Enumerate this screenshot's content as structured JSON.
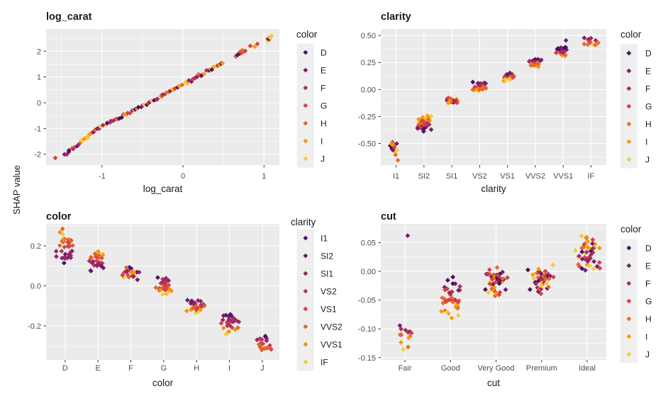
{
  "figure": {
    "shared_y_label": "SHAP value",
    "background": "#FFFFFF",
    "panel_bg": "#EBEBEB",
    "grid_color": "#FFFFFF",
    "legend_key_bg": "#EFEFEF",
    "tick_text_color": "#4D4D4D",
    "text_color": "#1A1A1A",
    "tick_mark_color": "#333333"
  },
  "chart_data": [
    {
      "type": "scatter",
      "title": "log_carat",
      "x_label": "log_carat",
      "x_axis": {
        "kind": "continuous",
        "range": [
          -1.69,
          1.19
        ],
        "ticks": [
          {
            "v": -1,
            "label": "-1"
          },
          {
            "v": 0,
            "label": "0"
          },
          {
            "v": 1,
            "label": "1"
          }
        ],
        "minor": [
          -1.5,
          -0.5,
          0.5
        ]
      },
      "y_axis": {
        "range": [
          -2.42,
          2.86
        ],
        "ticks": [
          {
            "v": 2,
            "label": "2"
          },
          {
            "v": 1,
            "label": "1"
          },
          {
            "v": 0,
            "label": "0"
          },
          {
            "v": -1,
            "label": "-1"
          },
          {
            "v": -2,
            "label": "-2"
          }
        ],
        "minor": [
          2.5,
          1.5,
          0.5,
          -0.5,
          -1.5
        ]
      },
      "legend": {
        "title": "color",
        "items": [
          {
            "label": "D",
            "color": "#4B0C6B"
          },
          {
            "label": "E",
            "color": "#781C6D"
          },
          {
            "label": "F",
            "color": "#A52C60"
          },
          {
            "label": "G",
            "color": "#CF4446"
          },
          {
            "label": "H",
            "color": "#ED6925"
          },
          {
            "label": "I",
            "color": "#FB9A06"
          },
          {
            "label": "J",
            "color": "#F7CB35"
          }
        ]
      },
      "points": {
        "mode": "segments",
        "seed": 7,
        "x_jitter": 0.018,
        "y_jitter": 0.07,
        "segments": [
          {
            "x0": -1.56,
            "y0": -2.19,
            "x1": -1.56,
            "y1": -2.19,
            "n": 1
          },
          {
            "x0": -1.46,
            "y0": -2.03,
            "x1": -1.05,
            "y1": -1.0,
            "n": 20
          },
          {
            "x0": -1.05,
            "y0": -1.0,
            "x1": 0.0,
            "y1": 0.7,
            "n": 46
          },
          {
            "x0": 0.02,
            "y0": 0.74,
            "x1": 0.5,
            "y1": 1.55,
            "n": 24
          },
          {
            "x0": 0.64,
            "y0": 1.78,
            "x1": 0.78,
            "y1": 2.08,
            "n": 10
          },
          {
            "x0": 0.82,
            "y0": 2.14,
            "x1": 0.96,
            "y1": 2.34,
            "n": 3
          },
          {
            "x0": 1.04,
            "y0": 2.42,
            "x1": 1.1,
            "y1": 2.58,
            "n": 6
          }
        ]
      }
    },
    {
      "type": "scatter",
      "title": "clarity",
      "x_label": "clarity",
      "x_axis": {
        "kind": "categorical",
        "categories": [
          "I1",
          "SI2",
          "SI1",
          "VS2",
          "VS1",
          "VVS2",
          "VVS1",
          "IF"
        ],
        "range": [
          0.45,
          8.55
        ]
      },
      "y_axis": {
        "range": [
          -0.7,
          0.56
        ],
        "ticks": [
          {
            "v": 0.5,
            "label": "0.50"
          },
          {
            "v": 0.25,
            "label": "0.25"
          },
          {
            "v": 0,
            "label": "0.00"
          },
          {
            "v": -0.25,
            "label": "-0.25"
          },
          {
            "v": -0.5,
            "label": "-0.50"
          }
        ],
        "minor": [
          0.375,
          0.125,
          -0.125,
          -0.375,
          -0.625
        ]
      },
      "legend": {
        "title": "color",
        "items": [
          {
            "label": "D",
            "color": "#4B0C6B"
          },
          {
            "label": "E",
            "color": "#781C6D"
          },
          {
            "label": "F",
            "color": "#A52C60"
          },
          {
            "label": "G",
            "color": "#CF4446"
          },
          {
            "label": "H",
            "color": "#ED6925"
          },
          {
            "label": "I",
            "color": "#FB9A06"
          },
          {
            "label": "J",
            "color": "#F7CB35"
          }
        ]
      },
      "points": {
        "mode": "clusters",
        "seed": 13,
        "cluster_width": 0.3,
        "clusters": [
          {
            "cat": 1,
            "center": -0.515,
            "min": -0.58,
            "max": -0.45,
            "n": 11,
            "trend": "mixed",
            "w": 0.24
          },
          {
            "cat": 2,
            "center": -0.315,
            "min": -0.4,
            "max": -0.235,
            "n": 42,
            "trend": "asc"
          },
          {
            "cat": 3,
            "center": -0.103,
            "min": -0.135,
            "max": -0.07,
            "n": 24,
            "trend": "mixed"
          },
          {
            "cat": 4,
            "center": 0.025,
            "min": -0.025,
            "max": 0.075,
            "n": 32,
            "trend": "desc"
          },
          {
            "cat": 5,
            "center": 0.125,
            "min": 0.07,
            "max": 0.175,
            "n": 24,
            "trend": "desc"
          },
          {
            "cat": 6,
            "center": 0.24,
            "min": 0.19,
            "max": 0.295,
            "n": 26,
            "trend": "desc"
          },
          {
            "cat": 7,
            "center": 0.335,
            "min": 0.29,
            "max": 0.4,
            "n": 23,
            "trend": "desc"
          },
          {
            "cat": 8,
            "center": 0.44,
            "min": 0.4,
            "max": 0.49,
            "n": 14,
            "trend": "desc"
          }
        ],
        "outliers": [
          {
            "cat": 1,
            "dx": -0.02,
            "y": -0.605,
            "color": 4
          },
          {
            "cat": 1,
            "dx": 0.06,
            "y": -0.655,
            "color": 4
          },
          {
            "cat": 7,
            "dx": 0.1,
            "y": 0.455,
            "color": 1
          }
        ]
      }
    },
    {
      "type": "scatter",
      "title": "color",
      "x_label": "color",
      "x_axis": {
        "kind": "categorical",
        "categories": [
          "D",
          "E",
          "F",
          "G",
          "H",
          "I",
          "J"
        ],
        "range": [
          0.42,
          7.52
        ]
      },
      "y_axis": {
        "range": [
          -0.37,
          0.31
        ],
        "ticks": [
          {
            "v": 0.2,
            "label": "0.2"
          },
          {
            "v": 0,
            "label": "0.0"
          },
          {
            "v": -0.2,
            "label": "-0.2"
          }
        ],
        "minor": [
          0.3,
          0.1,
          -0.1,
          -0.3
        ]
      },
      "legend": {
        "title": "clarity",
        "items": [
          {
            "label": "I1",
            "color": "#4B0C6B"
          },
          {
            "label": "SI2",
            "color": "#6D186E"
          },
          {
            "label": "SI1",
            "color": "#93246B"
          },
          {
            "label": "VS2",
            "color": "#B63458"
          },
          {
            "label": "VS1",
            "color": "#D24644"
          },
          {
            "label": "VVS2",
            "color": "#E8602C"
          },
          {
            "label": "VVS1",
            "color": "#F88E0D"
          },
          {
            "label": "IF",
            "color": "#F7CB35"
          }
        ]
      },
      "points": {
        "mode": "clusters",
        "seed": 21,
        "cluster_width": 0.32,
        "clusters": [
          {
            "cat": 1,
            "center": 0.175,
            "min": 0.09,
            "max": 0.28,
            "n": 36,
            "trend": "asc"
          },
          {
            "cat": 2,
            "center": 0.13,
            "min": 0.065,
            "max": 0.19,
            "n": 32,
            "trend": "asc"
          },
          {
            "cat": 3,
            "center": 0.065,
            "min": 0.02,
            "max": 0.105,
            "n": 24,
            "trend": "mixed"
          },
          {
            "cat": 4,
            "center": 0.01,
            "min": -0.055,
            "max": 0.065,
            "n": 30,
            "trend": "desc"
          },
          {
            "cat": 5,
            "center": -0.09,
            "min": -0.145,
            "max": -0.05,
            "n": 28,
            "trend": "desc"
          },
          {
            "cat": 6,
            "center": -0.19,
            "min": -0.25,
            "max": -0.135,
            "n": 28,
            "trend": "desc"
          },
          {
            "cat": 7,
            "center": -0.29,
            "min": -0.345,
            "max": -0.235,
            "n": 20,
            "trend": "desc"
          }
        ],
        "outliers": [
          {
            "cat": 1,
            "dx": -0.08,
            "y": 0.285,
            "color": 5
          }
        ]
      }
    },
    {
      "type": "scatter",
      "title": "cut",
      "x_label": "cut",
      "x_axis": {
        "kind": "categorical",
        "categories": [
          "Fair",
          "Good",
          "Very Good",
          "Premium",
          "Ideal"
        ],
        "range": [
          0.47,
          5.42
        ]
      },
      "y_axis": {
        "range": [
          -0.154,
          0.0825
        ],
        "ticks": [
          {
            "v": 0.05,
            "label": "0.05"
          },
          {
            "v": 0,
            "label": "0.00"
          },
          {
            "v": -0.05,
            "label": "-0.05"
          },
          {
            "v": -0.1,
            "label": "-0.10"
          },
          {
            "v": -0.15,
            "label": "-0.15"
          }
        ],
        "minor": [
          0.075,
          0.025,
          -0.025,
          -0.075,
          -0.125
        ]
      },
      "legend": {
        "title": "color",
        "items": [
          {
            "label": "D",
            "color": "#4B0C6B"
          },
          {
            "label": "E",
            "color": "#781C6D"
          },
          {
            "label": "F",
            "color": "#A52C60"
          },
          {
            "label": "G",
            "color": "#CF4446"
          },
          {
            "label": "H",
            "color": "#ED6925"
          },
          {
            "label": "I",
            "color": "#FB9A06"
          },
          {
            "label": "J",
            "color": "#F7CB35"
          }
        ]
      },
      "points": {
        "mode": "clusters",
        "seed": 42,
        "cluster_width": 0.3,
        "clusters": [
          {
            "cat": 1,
            "center": -0.11,
            "min": -0.14,
            "max": -0.073,
            "n": 14,
            "trend": "desc",
            "w": 0.22
          },
          {
            "cat": 2,
            "center": -0.045,
            "min": -0.087,
            "max": -0.003,
            "n": 38,
            "trend": "desc"
          },
          {
            "cat": 3,
            "center": -0.02,
            "min": -0.047,
            "max": 0.008,
            "n": 50,
            "trend": "mixed",
            "w": 0.32
          },
          {
            "cat": 4,
            "center": -0.012,
            "min": -0.045,
            "max": 0.012,
            "n": 48,
            "trend": "mixed",
            "w": 0.32
          },
          {
            "cat": 5,
            "center": 0.032,
            "min": -0.007,
            "max": 0.068,
            "n": 48,
            "trend": "mixed"
          }
        ],
        "outliers": [
          {
            "cat": 1,
            "dx": 0.06,
            "y": 0.062,
            "color": 1
          }
        ]
      }
    }
  ]
}
